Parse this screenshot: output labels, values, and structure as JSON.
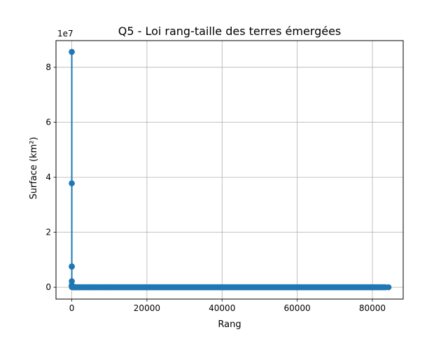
{
  "chart_data": {
    "type": "line",
    "title": "Q5 - Loi rang-taille des terres émergées",
    "xlabel": "Rang",
    "ylabel": "Surface (km²)",
    "y_offset_text": "1e7",
    "xlim": [
      -4200,
      88200
    ],
    "ylim": [
      -4300000,
      89700000
    ],
    "x_ticks": [
      0,
      20000,
      40000,
      60000,
      80000
    ],
    "x_tick_labels": [
      "0",
      "20000",
      "40000",
      "60000",
      "80000"
    ],
    "y_ticks": [
      0,
      20000000,
      40000000,
      60000000,
      80000000
    ],
    "y_tick_labels": [
      "0",
      "2",
      "4",
      "6",
      "8"
    ],
    "grid": true,
    "marker": "circle",
    "color": "#1f77b4",
    "series": [
      {
        "x": [
          1,
          2,
          3,
          4,
          5,
          6,
          7,
          8,
          10,
          15,
          25,
          50,
          100,
          200,
          500,
          1000,
          2000,
          5000,
          10000,
          20000,
          40000,
          60000,
          80000,
          84300
        ],
        "y": [
          85600000,
          37800000,
          7600000,
          7500000,
          2200000,
          800000,
          500000,
          400000,
          300000,
          200000,
          120000,
          60000,
          30000,
          15000,
          6000,
          3000,
          1500,
          600,
          300,
          120,
          50,
          20,
          10,
          5
        ]
      }
    ]
  }
}
